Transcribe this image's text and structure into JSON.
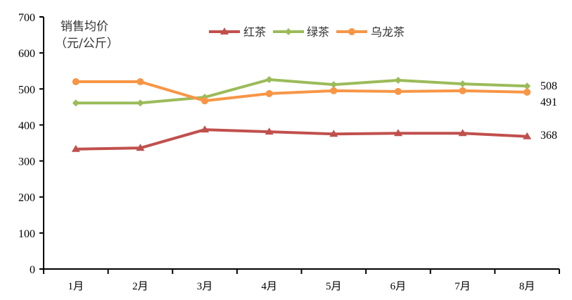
{
  "chart_data": {
    "type": "line",
    "title": "",
    "ylabel": "销售均价（元/公斤）",
    "ylabel_lines": [
      "销售均价",
      "（元/公斤）"
    ],
    "xlabel": "",
    "categories": [
      "1月",
      "2月",
      "3月",
      "4月",
      "5月",
      "6月",
      "7月",
      "8月"
    ],
    "ylim": [
      0,
      700
    ],
    "yticks": [
      0,
      100,
      200,
      300,
      400,
      500,
      600,
      700
    ],
    "grid": false,
    "legend_position": "top",
    "series": [
      {
        "name": "红茶",
        "color": "#C0504D",
        "marker": "triangle",
        "values": [
          333,
          336,
          387,
          381,
          375,
          377,
          377,
          368
        ],
        "end_label": "368"
      },
      {
        "name": "绿茶",
        "color": "#9BBB59",
        "marker": "diamond",
        "values": [
          461,
          461,
          477,
          526,
          512,
          524,
          514,
          508
        ],
        "end_label": "508"
      },
      {
        "name": "乌龙茶",
        "color": "#F79646",
        "marker": "circle",
        "values": [
          520,
          520,
          467,
          487,
          495,
          493,
          495,
          491
        ],
        "end_label": "491"
      }
    ]
  }
}
